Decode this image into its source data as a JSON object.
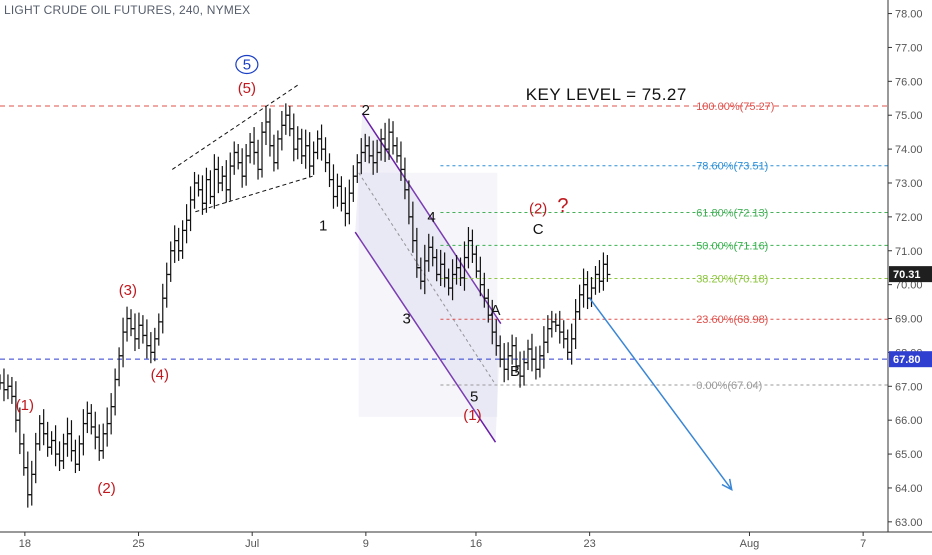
{
  "chart_title": "LIGHT CRUDE OIL FUTURES, 240, NYMEX",
  "chart_data": {
    "type": "ohlc",
    "y_axis": {
      "ylim": [
        62.7,
        78.4
      ],
      "ticks": [
        "63.00",
        "64.00",
        "65.00",
        "66.00",
        "67.00",
        "68.00",
        "69.00",
        "70.00",
        "71.00",
        "72.00",
        "73.00",
        "74.00",
        "75.00",
        "76.00",
        "77.00",
        "78.00"
      ]
    },
    "x_axis": {
      "domain": [
        0,
        250
      ],
      "ticks": [
        {
          "label": "18",
          "pos": 7
        },
        {
          "label": "25",
          "pos": 39
        },
        {
          "label": "Jul",
          "pos": 71
        },
        {
          "label": "9",
          "pos": 103
        },
        {
          "label": "16",
          "pos": 134
        },
        {
          "label": "23",
          "pos": 166
        },
        {
          "label": "Aug",
          "pos": 211
        },
        {
          "label": "7",
          "pos": 243
        }
      ]
    },
    "prices": [
      67.1,
      66.9,
      67.0,
      66.7,
      66.0,
      65.3,
      64.6,
      63.8,
      64.4,
      65.3,
      65.9,
      65.6,
      65.2,
      65.4,
      65.0,
      64.8,
      65.3,
      65.6,
      65.1,
      64.7,
      65.3,
      65.9,
      66.2,
      65.8,
      65.5,
      65.1,
      65.6,
      65.9,
      66.4,
      67.2,
      67.9,
      68.6,
      69.0,
      68.7,
      68.4,
      68.8,
      68.5,
      68.2,
      68.0,
      68.4,
      68.9,
      69.6,
      70.3,
      71.0,
      71.3,
      71.0,
      71.6,
      71.9,
      72.5,
      73.0,
      72.8,
      72.4,
      73.1,
      72.6,
      73.4,
      73.0,
      73.2,
      72.8,
      73.5,
      73.9,
      73.6,
      73.2,
      73.8,
      74.2,
      73.9,
      73.4,
      74.5,
      74.8,
      74.1,
      73.6,
      74.3,
      74.7,
      75.0,
      74.6,
      74.0,
      74.3,
      73.8,
      74.1,
      73.5,
      73.9,
      74.3,
      74.0,
      73.6,
      73.1,
      72.6,
      72.9,
      72.4,
      72.1,
      72.7,
      73.2,
      73.6,
      73.9,
      74.1,
      73.8,
      73.6,
      73.9,
      74.3,
      74.0,
      74.5,
      74.1,
      73.8,
      73.4,
      72.8,
      72.0,
      71.3,
      70.5,
      70.1,
      70.7,
      71.1,
      70.8,
      70.3,
      70.6,
      70.2,
      69.9,
      70.3,
      70.5,
      70.2,
      70.8,
      71.3,
      70.9,
      70.4,
      70.0,
      69.6,
      69.1,
      68.6,
      68.2,
      67.8,
      67.5,
      67.9,
      68.2,
      67.6,
      67.3,
      67.7,
      68.1,
      67.8,
      67.5,
      67.9,
      68.3,
      68.7,
      68.9,
      68.8,
      68.6,
      68.4,
      68.0,
      68.4,
      69.2,
      69.7,
      70.0,
      69.6,
      69.9,
      70.3,
      70.1,
      70.6,
      70.3
    ],
    "price_x_start": 0,
    "price_x_end": 171,
    "levels": [
      {
        "label": "100.00%(75.27)",
        "value": 75.27,
        "color": "#e0504b",
        "dash": "5,4",
        "width": 1
      },
      {
        "label": "78.60%(73.51)",
        "value": 73.51,
        "color": "#2b8fd6",
        "dash": "3,3",
        "width": 1
      },
      {
        "label": "61.80%(72.13)",
        "value": 72.13,
        "color": "#43b057",
        "dash": "3,3",
        "width": 1
      },
      {
        "label": "50.00%(71.16)",
        "value": 71.16,
        "color": "#37b24d",
        "dash": "3,3",
        "width": 1
      },
      {
        "label": "38.20%(70.18)",
        "value": 70.18,
        "color": "#8dc63f",
        "dash": "3,3",
        "width": 1
      },
      {
        "label": "23.60%(68.98)",
        "value": 68.98,
        "color": "#e0504b",
        "dash": "3,3",
        "width": 1
      },
      {
        "label": "0.00%(67.04)",
        "value": 67.04,
        "color": "#9a9a9a",
        "dash": "3,3",
        "width": 1
      }
    ],
    "key_level": {
      "label": "KEY LEVEL = 75.27",
      "value": 75.27
    },
    "support_level": {
      "value": 67.8,
      "color": "#2f3fd0"
    },
    "price_badges": [
      {
        "text": "70.31",
        "value": 70.31,
        "bg": "#1f1f1f",
        "color": "#ffffff"
      },
      {
        "text": "67.80",
        "value": 67.8,
        "bg": "#2f3fd0",
        "color": "#ffffff"
      }
    ],
    "wave_labels": [
      {
        "text": "(1)",
        "x": 7,
        "y": 66.3,
        "color": "#c0181e"
      },
      {
        "text": "(2)",
        "x": 30,
        "y": 63.85,
        "color": "#c0181e"
      },
      {
        "text": "(3)",
        "x": 36,
        "y": 69.7,
        "color": "#c0181e"
      },
      {
        "text": "(4)",
        "x": 45,
        "y": 67.2,
        "color": "#c0181e"
      },
      {
        "text": "(5)",
        "x": 69.5,
        "y": 75.65,
        "color": "#c0181e"
      },
      {
        "text": "5",
        "x": 69.5,
        "y": 76.35,
        "color": "#1a3fc4",
        "circled": true
      },
      {
        "text": "1",
        "x": 91,
        "y": 71.6,
        "color": "#111111"
      },
      {
        "text": "2",
        "x": 103,
        "y": 75.0,
        "color": "#111111"
      },
      {
        "text": "3",
        "x": 114.5,
        "y": 68.85,
        "color": "#111111"
      },
      {
        "text": "4",
        "x": 121.5,
        "y": 71.85,
        "color": "#111111"
      },
      {
        "text": "5",
        "x": 133.5,
        "y": 66.55,
        "color": "#111111"
      },
      {
        "text": "(1)",
        "x": 133,
        "y": 66.0,
        "color": "#c0181e"
      },
      {
        "text": "A",
        "x": 139.5,
        "y": 69.1,
        "color": "#111111"
      },
      {
        "text": "B",
        "x": 145,
        "y": 67.3,
        "color": "#111111"
      },
      {
        "text": "C",
        "x": 151.5,
        "y": 71.5,
        "color": "#111111"
      },
      {
        "text": "(2)",
        "x": 151.5,
        "y": 72.1,
        "color": "#c0181e"
      },
      {
        "text": "?",
        "x": 158.5,
        "y": 72.15,
        "color": "#c0181e"
      }
    ]
  }
}
